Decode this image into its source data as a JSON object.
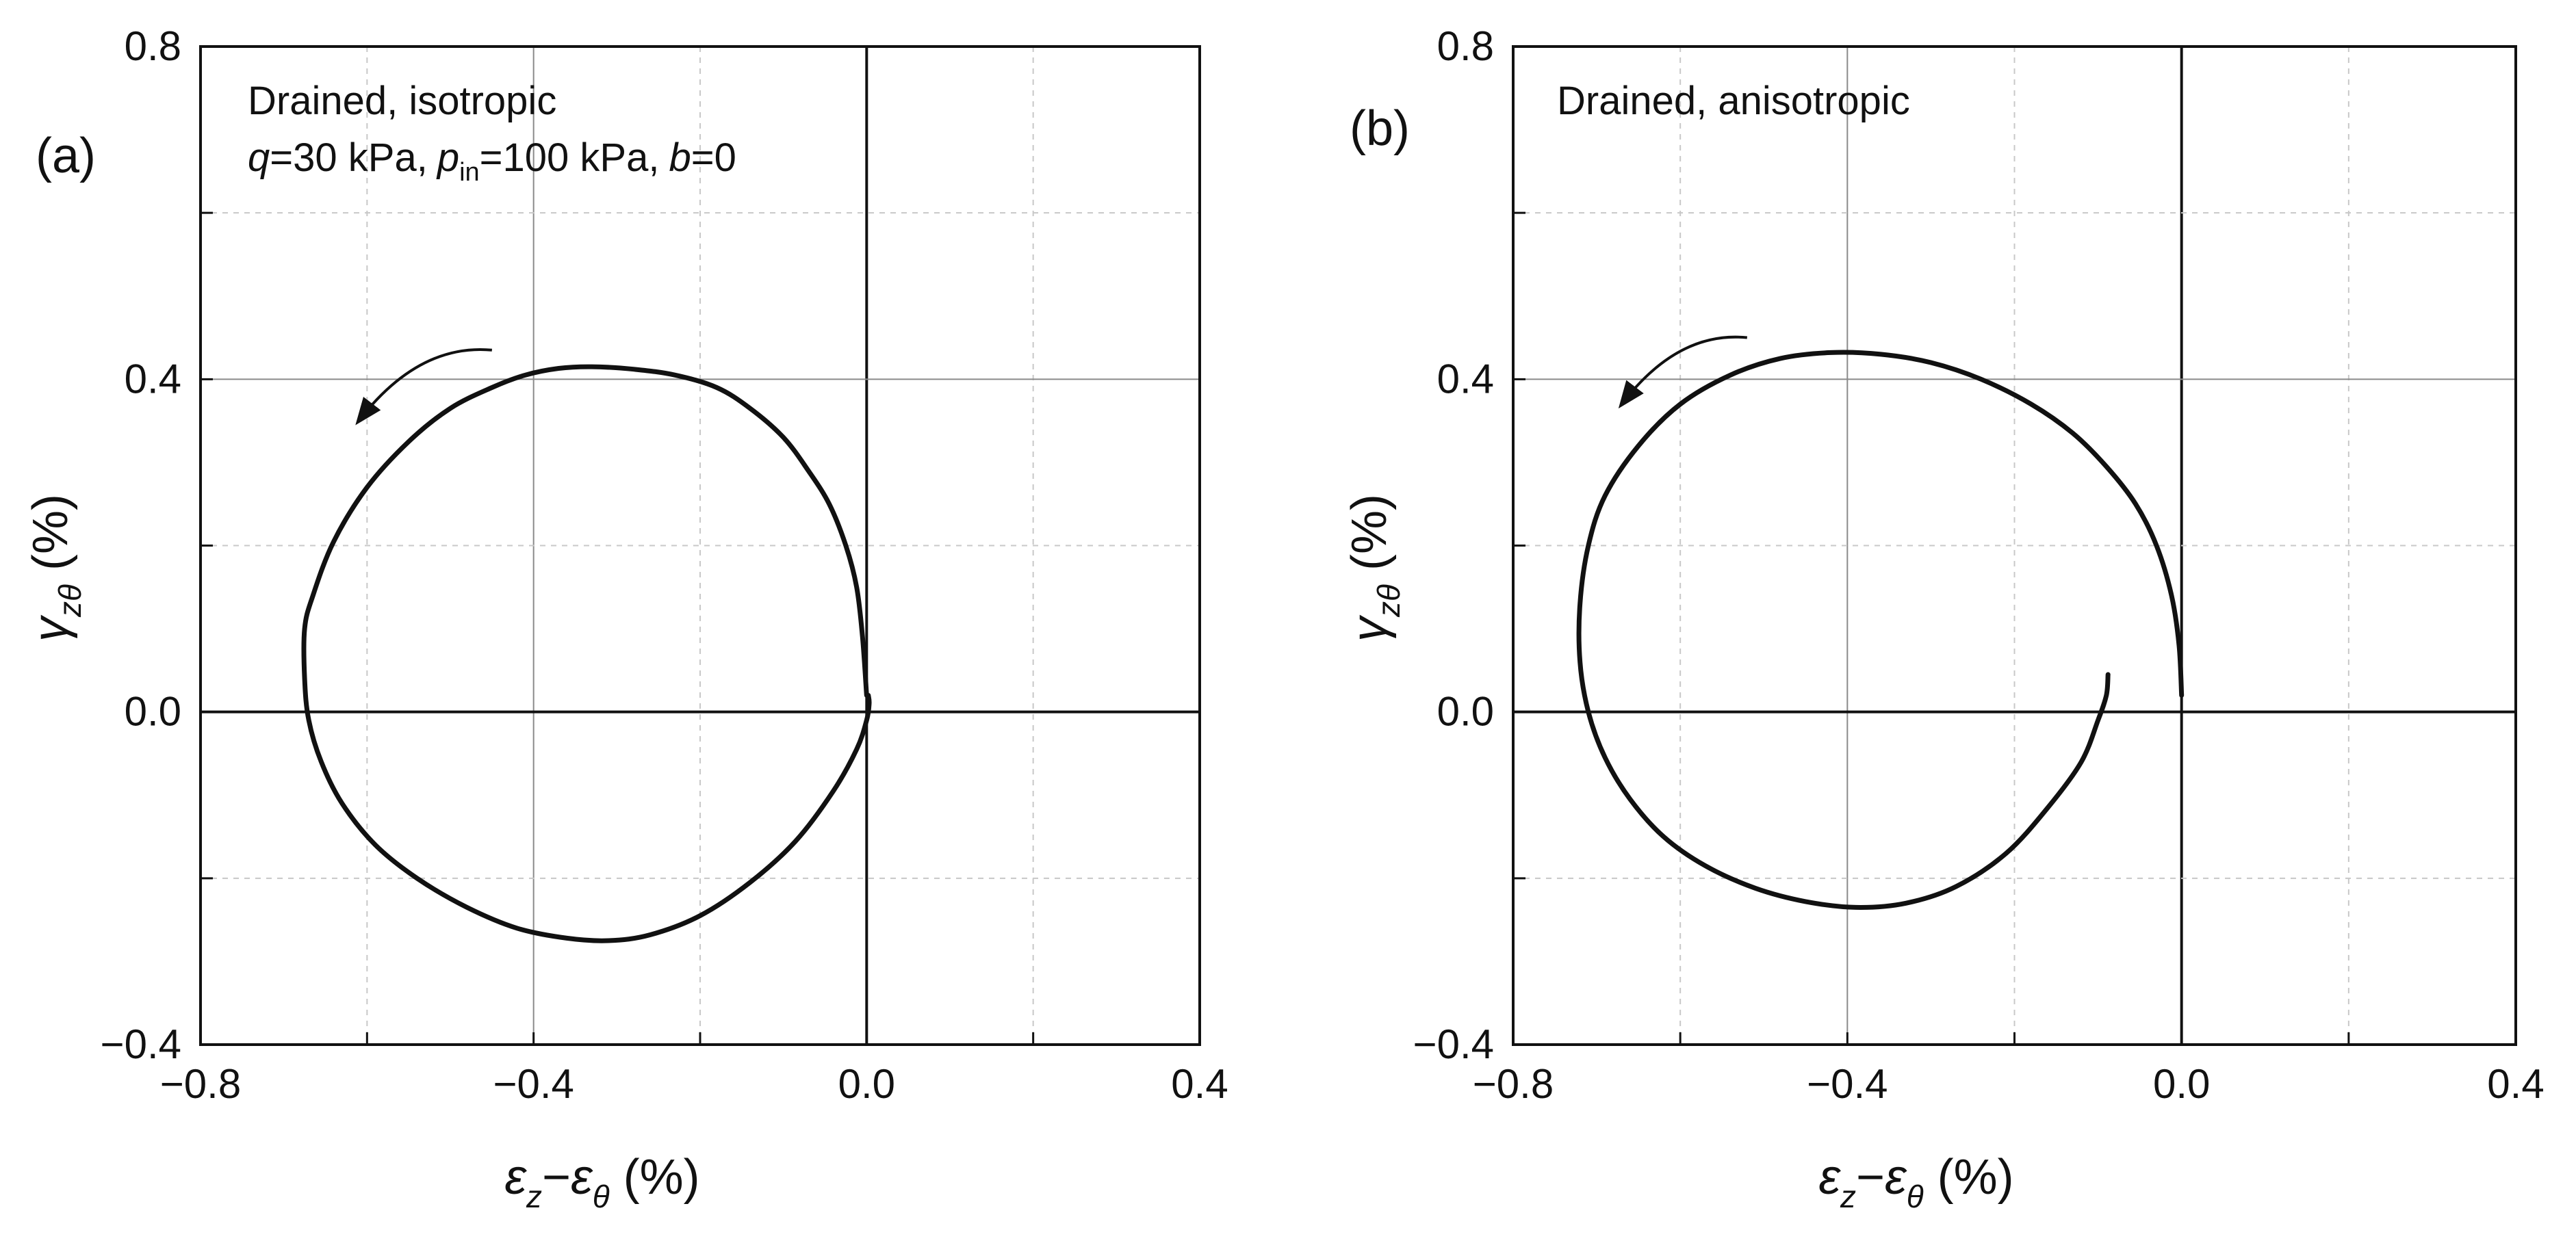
{
  "chart_data": [
    {
      "type": "line",
      "panel_label": "(a)",
      "annotation": {
        "line1": "Drained, isotropic",
        "line2": {
          "q_sym": "q",
          "q_val": "=30 kPa,",
          "p_sym": "p",
          "p_sub": "in",
          "p_val": "=100 kPa,",
          "b_sym": "b",
          "b_val": "=0"
        }
      },
      "xlabel": {
        "sym1": "ε",
        "sub1": "z",
        "dash": "−",
        "sym2": "ε",
        "sub2": "θ",
        "unit": " (%)"
      },
      "ylabel": {
        "sym": "γ",
        "sub": "zθ",
        "unit": " (%)"
      },
      "xlim": [
        -0.8,
        0.4
      ],
      "ylim": [
        -0.4,
        0.8
      ],
      "xticks": [
        "−0.8",
        "−0.4",
        "0.0",
        "0.4"
      ],
      "yticks": [
        "−0.4",
        "0.0",
        "0.4",
        "0.8"
      ],
      "grid": true,
      "arrow": {
        "from": [
          -0.45,
          0.435
        ],
        "to": [
          -0.61,
          0.35
        ],
        "direction": "counterclockwise"
      },
      "series": [
        {
          "x": [
            0.0,
            -0.005,
            -0.012,
            -0.025,
            -0.045,
            -0.07,
            -0.1,
            -0.14,
            -0.18,
            -0.23,
            -0.28,
            -0.33,
            -0.37,
            -0.41,
            -0.45,
            -0.5,
            -0.55,
            -0.6,
            -0.64,
            -0.665,
            -0.675,
            -0.675,
            -0.67,
            -0.655,
            -0.63,
            -0.59,
            -0.54,
            -0.48,
            -0.42,
            -0.36,
            -0.31,
            -0.26,
            -0.2,
            -0.14,
            -0.085,
            -0.04,
            -0.012,
            0.0,
            0.003,
            0.002
          ],
          "y": [
            0.02,
            0.09,
            0.15,
            0.2,
            0.25,
            0.29,
            0.33,
            0.365,
            0.39,
            0.405,
            0.412,
            0.415,
            0.413,
            0.405,
            0.39,
            0.365,
            0.325,
            0.27,
            0.205,
            0.14,
            0.1,
            0.04,
            -0.01,
            -0.06,
            -0.11,
            -0.16,
            -0.2,
            -0.235,
            -0.26,
            -0.272,
            -0.275,
            -0.268,
            -0.245,
            -0.205,
            -0.155,
            -0.095,
            -0.045,
            -0.01,
            0.01,
            0.02
          ]
        }
      ]
    },
    {
      "type": "line",
      "panel_label": "(b)",
      "annotation": {
        "line1": "Drained, anisotropic"
      },
      "xlabel": {
        "sym1": "ε",
        "sub1": "z",
        "dash": "−",
        "sym2": "ε",
        "sub2": "θ",
        "unit": " (%)"
      },
      "ylabel": {
        "sym": "γ",
        "sub": "zθ",
        "unit": " (%)"
      },
      "xlim": [
        -0.8,
        0.4
      ],
      "ylim": [
        -0.4,
        0.8
      ],
      "xticks": [
        "−0.8",
        "−0.4",
        "0.0",
        "0.4"
      ],
      "yticks": [
        "−0.4",
        "0.0",
        "0.4",
        "0.8"
      ],
      "grid": true,
      "arrow": {
        "from": [
          -0.52,
          0.45
        ],
        "to": [
          -0.67,
          0.37
        ],
        "direction": "counterclockwise"
      },
      "series": [
        {
          "x": [
            0.0,
            -0.003,
            -0.012,
            -0.03,
            -0.055,
            -0.09,
            -0.13,
            -0.18,
            -0.24,
            -0.3,
            -0.36,
            -0.42,
            -0.48,
            -0.54,
            -0.6,
            -0.65,
            -0.69,
            -0.71,
            -0.72,
            -0.72,
            -0.71,
            -0.69,
            -0.66,
            -0.62,
            -0.57,
            -0.51,
            -0.45,
            -0.39,
            -0.33,
            -0.27,
            -0.21,
            -0.16,
            -0.12,
            -0.1,
            -0.09,
            -0.088
          ],
          "y": [
            0.02,
            0.08,
            0.14,
            0.2,
            0.25,
            0.295,
            0.335,
            0.37,
            0.4,
            0.42,
            0.43,
            0.432,
            0.425,
            0.405,
            0.37,
            0.32,
            0.26,
            0.2,
            0.13,
            0.06,
            0.0,
            -0.055,
            -0.105,
            -0.15,
            -0.185,
            -0.212,
            -0.228,
            -0.235,
            -0.23,
            -0.21,
            -0.17,
            -0.115,
            -0.06,
            -0.01,
            0.02,
            0.045
          ]
        }
      ]
    }
  ]
}
